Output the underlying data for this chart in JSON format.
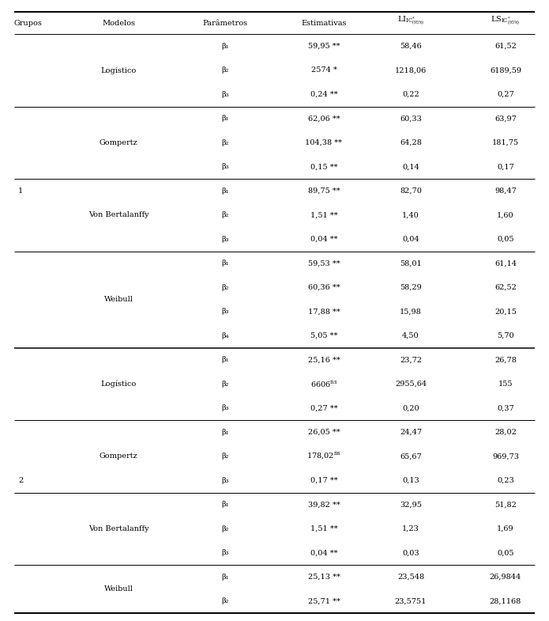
{
  "rows": [
    {
      "grupo": "",
      "modelo": "",
      "param": "β₁",
      "est": "59,95 **",
      "li": "58,46",
      "ls": "61,52"
    },
    {
      "grupo": "",
      "modelo": "",
      "param": "β₂",
      "est": "2574 *",
      "li": "1218,06",
      "ls": "6189,59"
    },
    {
      "grupo": "",
      "modelo": "",
      "param": "β₃",
      "est": "0,24 **",
      "li": "0,22",
      "ls": "0,27"
    },
    {
      "grupo": "",
      "modelo": "",
      "param": "β₁",
      "est": "62,06 **",
      "li": "60,33",
      "ls": "63,97"
    },
    {
      "grupo": "",
      "modelo": "",
      "param": "β₂",
      "est": "104,38 **",
      "li": "64,28",
      "ls": "181,75"
    },
    {
      "grupo": "",
      "modelo": "",
      "param": "β₃",
      "est": "0,15 **",
      "li": "0,14",
      "ls": "0,17"
    },
    {
      "grupo": "",
      "modelo": "",
      "param": "β₁",
      "est": "89,75 **",
      "li": "82,70",
      "ls": "98,47"
    },
    {
      "grupo": "",
      "modelo": "",
      "param": "β₂",
      "est": "1,51 **",
      "li": "1,40",
      "ls": "1,60"
    },
    {
      "grupo": "",
      "modelo": "",
      "param": "β₃",
      "est": "0,04 **",
      "li": "0,04",
      "ls": "0,05"
    },
    {
      "grupo": "",
      "modelo": "",
      "param": "β₁",
      "est": "59,53 **",
      "li": "58,01",
      "ls": "61,14"
    },
    {
      "grupo": "",
      "modelo": "",
      "param": "β₂",
      "est": "60,36 **",
      "li": "58,29",
      "ls": "62,52"
    },
    {
      "grupo": "",
      "modelo": "",
      "param": "β₃",
      "est": "17,88 **",
      "li": "15,98",
      "ls": "20,15"
    },
    {
      "grupo": "",
      "modelo": "",
      "param": "β₄",
      "est": "5,05 **",
      "li": "4,50",
      "ls": "5,70"
    },
    {
      "grupo": "",
      "modelo": "",
      "param": "β₁",
      "est": "25,16 **",
      "li": "23,72",
      "ls": "26,78"
    },
    {
      "grupo": "",
      "modelo": "",
      "param": "β₂",
      "est": "6606ⁿˢ",
      "li": "2955,64",
      "ls": "155"
    },
    {
      "grupo": "",
      "modelo": "",
      "param": "β₃",
      "est": "0,27 **",
      "li": "0,20",
      "ls": "0,37"
    },
    {
      "grupo": "",
      "modelo": "",
      "param": "β₁",
      "est": "26,05 **",
      "li": "24,47",
      "ls": "28,02"
    },
    {
      "grupo": "",
      "modelo": "",
      "param": "β₂",
      "est": "178,02ⁿˢ",
      "li": "65,67",
      "ls": "969,73"
    },
    {
      "grupo": "",
      "modelo": "",
      "param": "β₃",
      "est": "0,17 **",
      "li": "0,13",
      "ls": "0,23"
    },
    {
      "grupo": "",
      "modelo": "",
      "param": "β₁",
      "est": "39,82 **",
      "li": "32,95",
      "ls": "51,82"
    },
    {
      "grupo": "",
      "modelo": "",
      "param": "β₂",
      "est": "1,51 **",
      "li": "1,23",
      "ls": "1,69"
    },
    {
      "grupo": "",
      "modelo": "",
      "param": "β₃",
      "est": "0,04 **",
      "li": "0,03",
      "ls": "0,05"
    },
    {
      "grupo": "",
      "modelo": "",
      "param": "β₁",
      "est": "25,13 **",
      "li": "23,548",
      "ls": "26,9844"
    },
    {
      "grupo": "",
      "modelo": "",
      "param": "β₂",
      "est": "25,71 **",
      "li": "23,5751",
      "ls": "28,1168"
    }
  ],
  "modelo_labels": [
    {
      "text": "Logístico",
      "rows": [
        0,
        2
      ]
    },
    {
      "text": "Gompertz",
      "rows": [
        3,
        5
      ]
    },
    {
      "text": "Von Bertalanffy",
      "rows": [
        6,
        8
      ]
    },
    {
      "text": "Weibull",
      "rows": [
        9,
        12
      ]
    },
    {
      "text": "Logístico",
      "rows": [
        13,
        15
      ]
    },
    {
      "text": "Gompertz",
      "rows": [
        16,
        18
      ]
    },
    {
      "text": "Von Bertalanffy",
      "rows": [
        19,
        21
      ]
    },
    {
      "text": "Weibull",
      "rows": [
        22,
        23
      ]
    }
  ],
  "grupo_labels": [
    {
      "text": "1",
      "rows": [
        0,
        12
      ]
    },
    {
      "text": "2",
      "rows": [
        13,
        23
      ]
    }
  ],
  "section_lines": [
    3,
    6,
    9,
    13,
    16,
    19,
    22
  ],
  "major_lines": [
    13
  ],
  "est_ns_rows": [
    14,
    17
  ],
  "font_size": 7.0
}
